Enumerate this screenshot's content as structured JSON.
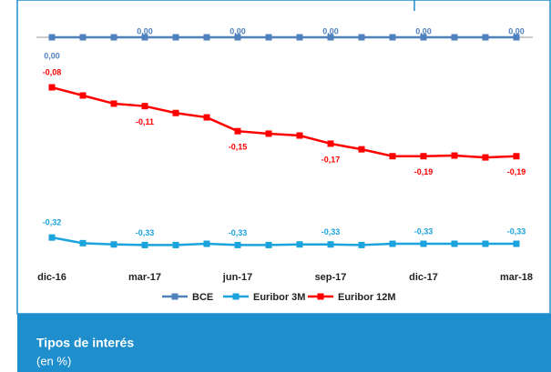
{
  "chart_data": {
    "type": "line",
    "title": "Tipos de interés",
    "subtitle": "(en %)",
    "categories": [
      "dic-16",
      null,
      null,
      "mar-17",
      null,
      null,
      "jun-17",
      null,
      null,
      "sep-17",
      null,
      null,
      "dic-17",
      null,
      null,
      "mar-18"
    ],
    "ylim": [
      -0.4,
      0.02
    ],
    "grid": false,
    "legend": "bottom",
    "series": [
      {
        "name": "BCE",
        "color": "#4f81bd",
        "values": [
          0,
          0,
          0,
          0,
          0,
          0,
          0,
          0,
          0,
          0,
          0,
          0,
          0,
          0,
          0,
          0
        ],
        "value_labels": [
          "0,00",
          null,
          null,
          "0,00",
          null,
          null,
          "0,00",
          null,
          null,
          "0,00",
          null,
          null,
          "0,00",
          null,
          null,
          "0,00"
        ]
      },
      {
        "name": "Euribor 3M",
        "color": "#1aa3dc",
        "values": [
          -0.32,
          -0.329,
          -0.331,
          -0.332,
          -0.332,
          -0.33,
          -0.332,
          -0.332,
          -0.331,
          -0.331,
          -0.332,
          -0.33,
          -0.33,
          -0.33,
          -0.33,
          -0.33
        ],
        "value_labels": [
          "-0,32",
          null,
          null,
          "-0,33",
          null,
          null,
          "-0,33",
          null,
          null,
          "-0,33",
          null,
          null,
          "-0,33",
          null,
          null,
          "-0,33"
        ]
      },
      {
        "name": "Euribor 12M",
        "color": "#ff0000",
        "values": [
          -0.08,
          -0.093,
          -0.106,
          -0.11,
          -0.121,
          -0.128,
          -0.15,
          -0.154,
          -0.157,
          -0.17,
          -0.179,
          -0.19,
          -0.19,
          -0.189,
          -0.192,
          -0.19
        ],
        "value_labels": [
          "-0,08",
          null,
          null,
          "-0,11",
          null,
          null,
          "-0,15",
          null,
          null,
          "-0,17",
          null,
          null,
          "-0,19",
          null,
          null,
          "-0,19"
        ]
      }
    ]
  }
}
